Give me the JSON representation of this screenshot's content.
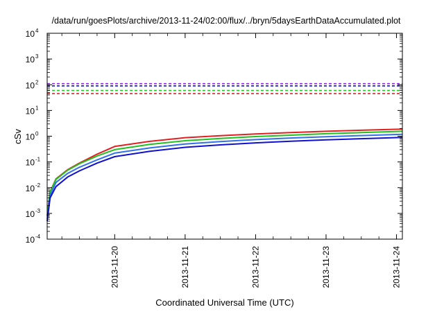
{
  "chart_data": {
    "type": "line",
    "title": "/data/run/goesPlots/archive/2013-11-24/02:00/flux/../bryn/5daysEarthDataAccumulated.plot",
    "xlabel": "Coordinated Universal Time (UTC)",
    "ylabel": "cSv",
    "yscale": "log",
    "ylim": [
      0.0001,
      10000
    ],
    "xlim": [
      "2013-11-19 01:00",
      "2013-11-24 02:00"
    ],
    "grid": false,
    "legend": "none",
    "x_ticks": [
      "2013-11-20",
      "2013-11-21",
      "2013-11-22",
      "2013-11-23",
      "2013-11-24"
    ],
    "y_ticks": [
      {
        "value": 0.0001,
        "base": "10",
        "exp": "-4"
      },
      {
        "value": 0.001,
        "base": "10",
        "exp": "-3"
      },
      {
        "value": 0.01,
        "base": "10",
        "exp": "-2"
      },
      {
        "value": 0.1,
        "base": "10",
        "exp": "-1"
      },
      {
        "value": 1,
        "base": "10",
        "exp": "0"
      },
      {
        "value": 10,
        "base": "10",
        "exp": "1"
      },
      {
        "value": 100,
        "base": "10",
        "exp": "2"
      },
      {
        "value": 1000,
        "base": "10",
        "exp": "3"
      },
      {
        "value": 10000,
        "base": "10",
        "exp": "4"
      }
    ],
    "series": [
      {
        "color": "#e02020",
        "style": "solid",
        "x": [
          "2013-11-19 01:00",
          "2013-11-19 02:00",
          "2013-11-19 04:00",
          "2013-11-19 08:00",
          "2013-11-19 12:00",
          "2013-11-19 18:00",
          "2013-11-20 00:00",
          "2013-11-20 12:00",
          "2013-11-21 00:00",
          "2013-11-21 12:00",
          "2013-11-22 00:00",
          "2013-11-22 12:00",
          "2013-11-23 00:00",
          "2013-11-23 12:00",
          "2013-11-24 02:00"
        ],
        "y": [
          0.0008,
          0.007,
          0.022,
          0.05,
          0.09,
          0.2,
          0.4,
          0.63,
          0.88,
          1.05,
          1.22,
          1.38,
          1.55,
          1.7,
          1.9
        ]
      },
      {
        "color": "#20c020",
        "style": "solid",
        "x": [
          "2013-11-19 01:00",
          "2013-11-19 02:00",
          "2013-11-19 04:00",
          "2013-11-19 08:00",
          "2013-11-19 12:00",
          "2013-11-19 18:00",
          "2013-11-20 00:00",
          "2013-11-20 12:00",
          "2013-11-21 00:00",
          "2013-11-21 12:00",
          "2013-11-22 00:00",
          "2013-11-22 12:00",
          "2013-11-23 00:00",
          "2013-11-23 12:00",
          "2013-11-24 02:00"
        ],
        "y": [
          0.0008,
          0.007,
          0.021,
          0.048,
          0.085,
          0.17,
          0.3,
          0.48,
          0.67,
          0.82,
          0.97,
          1.1,
          1.25,
          1.38,
          1.55
        ]
      },
      {
        "color": "#3070e8",
        "style": "solid",
        "x": [
          "2013-11-19 01:00",
          "2013-11-19 02:00",
          "2013-11-19 04:00",
          "2013-11-19 08:00",
          "2013-11-19 12:00",
          "2013-11-19 18:00",
          "2013-11-20 00:00",
          "2013-11-20 12:00",
          "2013-11-21 00:00",
          "2013-11-21 12:00",
          "2013-11-22 00:00",
          "2013-11-22 12:00",
          "2013-11-23 00:00",
          "2013-11-23 12:00",
          "2013-11-24 02:00"
        ],
        "y": [
          0.0006,
          0.005,
          0.016,
          0.036,
          0.062,
          0.12,
          0.22,
          0.35,
          0.5,
          0.62,
          0.74,
          0.85,
          0.96,
          1.06,
          1.18
        ]
      },
      {
        "color": "#1010d0",
        "style": "solid",
        "x": [
          "2013-11-19 01:00",
          "2013-11-19 02:00",
          "2013-11-19 04:00",
          "2013-11-19 08:00",
          "2013-11-19 12:00",
          "2013-11-19 18:00",
          "2013-11-20 00:00",
          "2013-11-20 12:00",
          "2013-11-21 00:00",
          "2013-11-21 12:00",
          "2013-11-22 00:00",
          "2013-11-22 12:00",
          "2013-11-23 00:00",
          "2013-11-23 12:00",
          "2013-11-24 02:00"
        ],
        "y": [
          0.0005,
          0.004,
          0.011,
          0.026,
          0.045,
          0.09,
          0.16,
          0.26,
          0.37,
          0.46,
          0.55,
          0.64,
          0.72,
          0.8,
          0.9
        ]
      },
      {
        "color": "#8a2be2",
        "style": "dashed",
        "x": [
          "2013-11-19 01:00",
          "2013-11-24 02:00"
        ],
        "y": [
          110,
          110
        ]
      },
      {
        "color": "#1010d0",
        "style": "dashed",
        "x": [
          "2013-11-19 01:00",
          "2013-11-24 02:00"
        ],
        "y": [
          90,
          90
        ]
      },
      {
        "color": "#20c020",
        "style": "dashed",
        "x": [
          "2013-11-19 01:00",
          "2013-11-24 02:00"
        ],
        "y": [
          60,
          60
        ]
      },
      {
        "color": "#e02020",
        "style": "dashed",
        "x": [
          "2013-11-19 01:00",
          "2013-11-24 02:00"
        ],
        "y": [
          45,
          45
        ]
      }
    ]
  }
}
